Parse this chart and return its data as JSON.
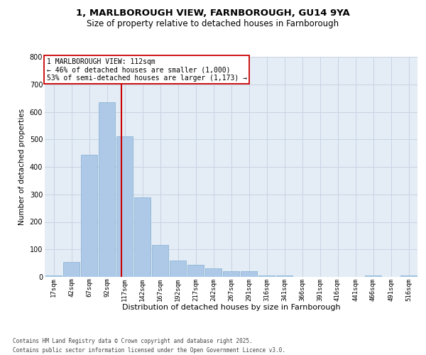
{
  "title_line1": "1, MARLBOROUGH VIEW, FARNBOROUGH, GU14 9YA",
  "title_line2": "Size of property relative to detached houses in Farnborough",
  "xlabel": "Distribution of detached houses by size in Farnborough",
  "ylabel": "Number of detached properties",
  "bar_labels": [
    "17sqm",
    "42sqm",
    "67sqm",
    "92sqm",
    "117sqm",
    "142sqm",
    "167sqm",
    "192sqm",
    "217sqm",
    "242sqm",
    "267sqm",
    "291sqm",
    "316sqm",
    "341sqm",
    "366sqm",
    "391sqm",
    "416sqm",
    "441sqm",
    "466sqm",
    "491sqm",
    "516sqm"
  ],
  "bar_values": [
    5,
    55,
    445,
    635,
    510,
    290,
    115,
    60,
    45,
    30,
    20,
    20,
    5,
    5,
    0,
    0,
    0,
    0,
    5,
    0,
    5
  ],
  "bar_color": "#aec9e8",
  "bar_edge_color": "#80aed0",
  "grid_color": "#c8d4e4",
  "bg_color": "#e4ecf5",
  "vline_color": "#cc0000",
  "vline_index": 3.8,
  "annotation_text": "1 MARLBOROUGH VIEW: 112sqm\n← 46% of detached houses are smaller (1,000)\n53% of semi-detached houses are larger (1,173) →",
  "annotation_box_facecolor": "#ffffff",
  "annotation_box_edgecolor": "#cc0000",
  "footnote1": "Contains HM Land Registry data © Crown copyright and database right 2025.",
  "footnote2": "Contains public sector information licensed under the Open Government Licence v3.0.",
  "ylim": [
    0,
    800
  ],
  "yticks": [
    0,
    100,
    200,
    300,
    400,
    500,
    600,
    700,
    800
  ],
  "title1_fontsize": 9.5,
  "title2_fontsize": 8.5,
  "xlabel_fontsize": 8,
  "ylabel_fontsize": 7.5,
  "tick_fontsize": 6.5,
  "annot_fontsize": 7,
  "footnote_fontsize": 5.5
}
